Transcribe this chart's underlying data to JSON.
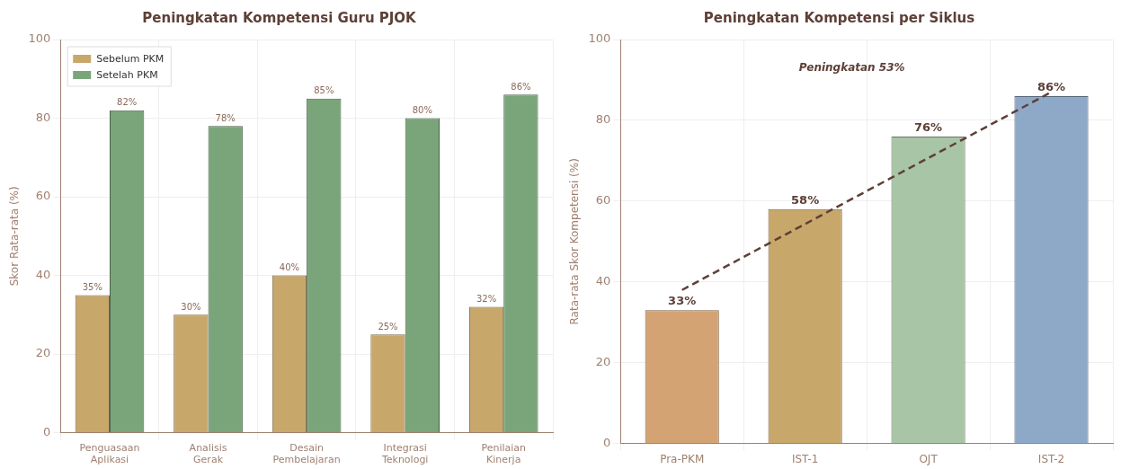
{
  "chart_data": [
    {
      "type": "bar",
      "title": "Peningkatan Kompetensi Guru PJOK",
      "ylabel": "Skor Rata-rata (%)",
      "categories": [
        "Penguasaan Aplikasi",
        "Analisis Gerak",
        "Desain Pembelajaran",
        "Integrasi Teknologi",
        "Penilaian Kinerja"
      ],
      "series": [
        {
          "name": "Sebelum PKM",
          "color": "#c8a76b",
          "values": [
            35,
            30,
            40,
            25,
            32
          ],
          "value_labels": [
            "35%",
            "30%",
            "40%",
            "25%",
            "32%"
          ]
        },
        {
          "name": "Setelah PKM",
          "color": "#7aa57a",
          "values": [
            82,
            78,
            85,
            80,
            86
          ],
          "value_labels": [
            "82%",
            "78%",
            "85%",
            "80%",
            "86%"
          ]
        }
      ],
      "ylim": [
        0,
        100
      ],
      "yticks": [
        0,
        20,
        40,
        60,
        80,
        100
      ],
      "grid": true,
      "legend": "top left"
    },
    {
      "type": "bar",
      "title": "Peningkatan Kompetensi per Siklus",
      "ylabel": "Rata-rata Skor Kompetensi (%)",
      "categories": [
        "Pra-PKM",
        "IST-1",
        "OJT",
        "IST-2"
      ],
      "series": [
        {
          "colors": [
            "#d4a373",
            "#c8a76b",
            "#a8c5a5",
            "#8ea8c8"
          ],
          "values": [
            33,
            58,
            76,
            86
          ],
          "value_labels": [
            "33%",
            "58%",
            "76%",
            "86%"
          ]
        },
        {
          "type": "line",
          "color": "#5d4037",
          "x": [
            "Pra-PKM",
            "IST-2"
          ],
          "values": [
            38,
            87
          ],
          "line_style": "dashed",
          "marker": "none"
        }
      ],
      "annotations": [
        "Peningkatan 53%"
      ],
      "ylim": [
        0,
        100
      ],
      "yticks": [
        0,
        20,
        40,
        60,
        80,
        100
      ],
      "grid": true,
      "legend": false
    }
  ]
}
